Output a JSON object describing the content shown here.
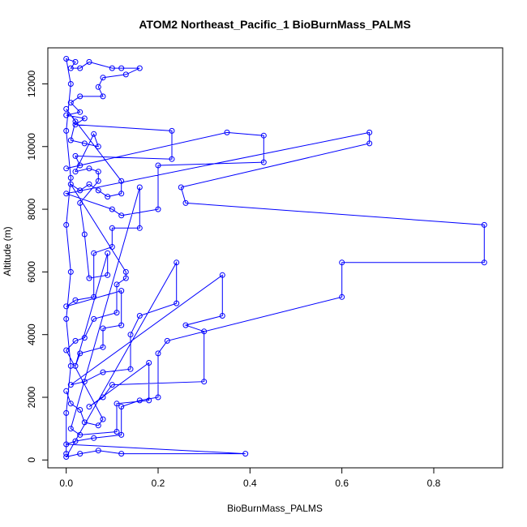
{
  "chart_data": {
    "type": "scatter",
    "title": "ATOM2 Northeast_Pacific_1 BioBurnMass_PALMS",
    "xlabel": "BioBurnMass_PALMS",
    "ylabel": "Altitude (m)",
    "xlim": [
      -0.04,
      0.95
    ],
    "ylim": [
      -250,
      13150
    ],
    "x_ticks": [
      0.0,
      0.2,
      0.4,
      0.6,
      0.8
    ],
    "x_tick_labels": [
      "0.0",
      "0.2",
      "0.4",
      "0.6",
      "0.8"
    ],
    "y_ticks": [
      0,
      2000,
      4000,
      6000,
      8000,
      10000,
      12000
    ],
    "y_tick_labels": [
      "0",
      "2000",
      "4000",
      "6000",
      "8000",
      "10000",
      "12000"
    ],
    "grid": false,
    "legend": "none",
    "series": [
      {
        "color": "#0000ff",
        "marker": "open-circle",
        "connected": true,
        "points": [
          [
            0.0,
            200
          ],
          [
            0.0,
            1500
          ],
          [
            0.01,
            3000
          ],
          [
            0.0,
            4500
          ],
          [
            0.01,
            6000
          ],
          [
            0.0,
            7500
          ],
          [
            0.01,
            9000
          ],
          [
            0.0,
            10500
          ],
          [
            0.01,
            12000
          ],
          [
            0.0,
            12800
          ],
          [
            0.02,
            12700
          ],
          [
            0.01,
            12500
          ],
          [
            0.03,
            12500
          ],
          [
            0.05,
            12700
          ],
          [
            0.1,
            12500
          ],
          [
            0.12,
            12500
          ],
          [
            0.16,
            12500
          ],
          [
            0.13,
            12300
          ],
          [
            0.08,
            12200
          ],
          [
            0.07,
            11900
          ],
          [
            0.08,
            11600
          ],
          [
            0.03,
            11600
          ],
          [
            0.01,
            11400
          ],
          [
            0.03,
            11100
          ],
          [
            0.0,
            11000
          ],
          [
            0.04,
            10900
          ],
          [
            0.02,
            10700
          ],
          [
            0.23,
            10500
          ],
          [
            0.23,
            9600
          ],
          [
            0.02,
            9700
          ],
          [
            0.03,
            9400
          ],
          [
            0.0,
            9300
          ],
          [
            0.35,
            10450
          ],
          [
            0.43,
            10350
          ],
          [
            0.43,
            9500
          ],
          [
            0.2,
            9400
          ],
          [
            0.2,
            8000
          ],
          [
            0.12,
            7800
          ],
          [
            0.1,
            8000
          ],
          [
            0.0,
            8500
          ],
          [
            0.66,
            10450
          ],
          [
            0.66,
            10100
          ],
          [
            0.25,
            8700
          ],
          [
            0.26,
            8200
          ],
          [
            0.91,
            7500
          ],
          [
            0.91,
            6300
          ],
          [
            0.6,
            6300
          ],
          [
            0.6,
            5200
          ],
          [
            0.22,
            3800
          ],
          [
            0.2,
            3400
          ],
          [
            0.2,
            2000
          ],
          [
            0.16,
            1900
          ],
          [
            0.12,
            1700
          ],
          [
            0.12,
            800
          ],
          [
            0.06,
            700
          ],
          [
            0.02,
            600
          ],
          [
            0.0,
            500
          ],
          [
            0.39,
            200
          ],
          [
            0.12,
            200
          ],
          [
            0.07,
            300
          ],
          [
            0.03,
            200
          ],
          [
            0.0,
            100
          ],
          [
            0.24,
            6300
          ],
          [
            0.24,
            5000
          ],
          [
            0.16,
            4600
          ],
          [
            0.14,
            4000
          ],
          [
            0.14,
            2900
          ],
          [
            0.08,
            2800
          ],
          [
            0.04,
            2500
          ],
          [
            0.01,
            2400
          ],
          [
            0.34,
            5900
          ],
          [
            0.34,
            4600
          ],
          [
            0.26,
            4300
          ],
          [
            0.3,
            4100
          ],
          [
            0.3,
            2500
          ],
          [
            0.1,
            2400
          ],
          [
            0.08,
            2000
          ],
          [
            0.05,
            1700
          ],
          [
            0.18,
            3100
          ],
          [
            0.18,
            1900
          ],
          [
            0.11,
            1800
          ],
          [
            0.11,
            900
          ],
          [
            0.03,
            800
          ],
          [
            0.01,
            1000
          ],
          [
            0.16,
            8700
          ],
          [
            0.16,
            7400
          ],
          [
            0.1,
            7400
          ],
          [
            0.1,
            6800
          ],
          [
            0.06,
            6600
          ],
          [
            0.06,
            5200
          ],
          [
            0.02,
            5100
          ],
          [
            0.0,
            4900
          ],
          [
            0.12,
            5400
          ],
          [
            0.12,
            4300
          ],
          [
            0.08,
            4200
          ],
          [
            0.08,
            3600
          ],
          [
            0.03,
            3400
          ],
          [
            0.02,
            3000
          ],
          [
            0.09,
            6600
          ],
          [
            0.09,
            5900
          ],
          [
            0.05,
            5800
          ],
          [
            0.04,
            7200
          ],
          [
            0.03,
            8200
          ],
          [
            0.07,
            8900
          ],
          [
            0.07,
            9200
          ],
          [
            0.05,
            9300
          ],
          [
            0.02,
            9200
          ],
          [
            0.06,
            10400
          ],
          [
            0.07,
            10000
          ],
          [
            0.04,
            10100
          ],
          [
            0.01,
            10200
          ],
          [
            0.02,
            10800
          ],
          [
            0.0,
            11200
          ],
          [
            0.12,
            8900
          ],
          [
            0.12,
            8500
          ],
          [
            0.09,
            8400
          ],
          [
            0.07,
            8600
          ],
          [
            0.05,
            8800
          ],
          [
            0.03,
            8600
          ],
          [
            0.01,
            8800
          ],
          [
            0.13,
            6000
          ],
          [
            0.13,
            5800
          ],
          [
            0.11,
            5600
          ],
          [
            0.11,
            4700
          ],
          [
            0.06,
            4500
          ],
          [
            0.04,
            3900
          ],
          [
            0.02,
            3800
          ],
          [
            0.0,
            3500
          ],
          [
            0.08,
            1300
          ],
          [
            0.07,
            1100
          ],
          [
            0.04,
            1200
          ],
          [
            0.03,
            1600
          ],
          [
            0.01,
            1800
          ],
          [
            0.0,
            2200
          ]
        ]
      }
    ]
  }
}
